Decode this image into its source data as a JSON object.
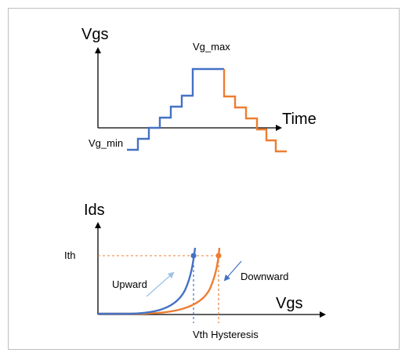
{
  "top": {
    "y_axis_label": "Vgs",
    "x_axis_label": "Time",
    "max_label": "Vg_max",
    "min_label": "Vg_min"
  },
  "bottom": {
    "y_axis_label": "Ids",
    "x_axis_label": "Vgs",
    "threshold_current_label": "Ith",
    "upward_label": "Upward",
    "downward_label": "Downward",
    "hysteresis_label": "Vth Hysteresis"
  },
  "colors": {
    "upward": "#4472c4",
    "downward": "#ed7d31",
    "axis": "#000000",
    "arrow_light": "#9dc3e6"
  }
}
